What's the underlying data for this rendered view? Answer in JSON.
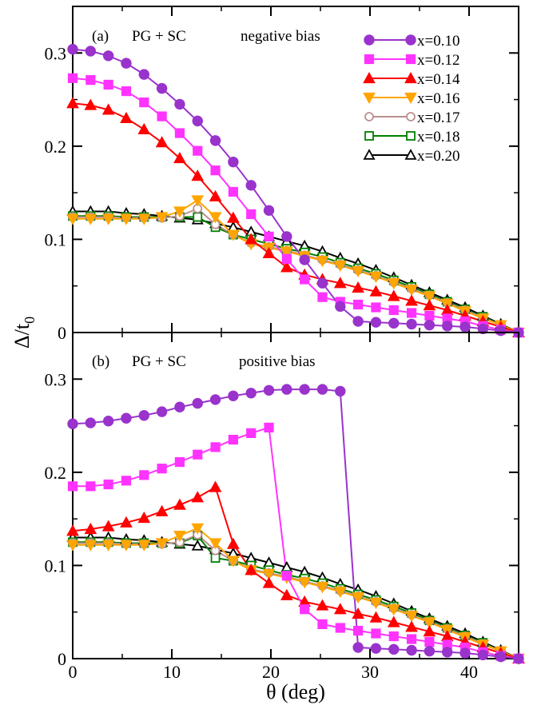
{
  "ylabel": "Δ/t",
  "ylabel_sub": "0",
  "xlabel": "θ (deg)",
  "x_ticks": [
    "0",
    "10",
    "20",
    "30",
    "40"
  ],
  "y_ticks": [
    "0",
    "0.1",
    "0.2",
    "0.3"
  ],
  "legend_labels": [
    "x=0.10",
    "x=0.12",
    "x=0.14",
    "x=0.16",
    "x=0.17",
    "x=0.18",
    "x=0.20"
  ],
  "panels": [
    {
      "tag": "(a)",
      "label": "PG + SC",
      "bias": "negative bias"
    },
    {
      "tag": "(b)",
      "label": "PG + SC",
      "bias": "positive bias"
    }
  ],
  "chart_data": [
    {
      "type": "line",
      "panel": "(a)",
      "title": "PG + SC negative bias",
      "xlabel": "",
      "ylabel": "Δ/t0",
      "xlim": [
        0,
        45
      ],
      "ylim": [
        0,
        0.35
      ],
      "x": [
        0,
        1.8,
        3.6,
        5.4,
        7.2,
        9.0,
        10.8,
        12.6,
        14.4,
        16.2,
        18.0,
        19.8,
        21.6,
        23.4,
        25.2,
        27.0,
        28.8,
        30.6,
        32.4,
        34.2,
        36.0,
        37.8,
        39.6,
        41.4,
        43.2,
        45.0
      ],
      "series": [
        {
          "name": "x=0.10",
          "color": "#9933cc",
          "marker": "circle-filled",
          "values": [
            0.304,
            0.302,
            0.297,
            0.289,
            0.277,
            0.262,
            0.245,
            0.227,
            0.206,
            0.183,
            0.158,
            0.131,
            0.103,
            0.078,
            0.053,
            0.028,
            0.012,
            0.011,
            0.01,
            0.009,
            0.008,
            0.007,
            0.006,
            0.004,
            0.002,
            0.0
          ]
        },
        {
          "name": "x=0.12",
          "color": "#ff33ff",
          "marker": "square-filled",
          "values": [
            0.273,
            0.271,
            0.266,
            0.259,
            0.247,
            0.232,
            0.214,
            0.195,
            0.174,
            0.151,
            0.127,
            0.103,
            0.079,
            0.057,
            0.038,
            0.033,
            0.03,
            0.027,
            0.024,
            0.021,
            0.018,
            0.015,
            0.012,
            0.007,
            0.003,
            0.0
          ]
        },
        {
          "name": "x=0.14",
          "color": "#ff0000",
          "marker": "triangle-up-filled",
          "values": [
            0.246,
            0.244,
            0.239,
            0.23,
            0.218,
            0.204,
            0.187,
            0.168,
            0.146,
            0.123,
            0.1,
            0.085,
            0.07,
            0.062,
            0.057,
            0.053,
            0.048,
            0.044,
            0.039,
            0.034,
            0.029,
            0.024,
            0.018,
            0.012,
            0.006,
            0.0
          ]
        },
        {
          "name": "x=0.16",
          "color": "#ffa500",
          "marker": "triangle-down-filled",
          "values": [
            0.122,
            0.122,
            0.122,
            0.122,
            0.122,
            0.124,
            0.13,
            0.142,
            0.124,
            0.105,
            0.095,
            0.091,
            0.087,
            0.082,
            0.077,
            0.072,
            0.066,
            0.06,
            0.053,
            0.046,
            0.039,
            0.031,
            0.023,
            0.015,
            0.008,
            0.0
          ]
        },
        {
          "name": "x=0.17",
          "color": "#bc8f8f",
          "marker": "circle-open",
          "values": [
            0.124,
            0.124,
            0.124,
            0.123,
            0.123,
            0.123,
            0.125,
            0.133,
            0.116,
            0.105,
            0.096,
            0.092,
            0.088,
            0.083,
            0.078,
            0.073,
            0.067,
            0.061,
            0.054,
            0.047,
            0.04,
            0.032,
            0.024,
            0.016,
            0.008,
            0.0
          ]
        },
        {
          "name": "x=0.18",
          "color": "#008000",
          "marker": "square-open",
          "values": [
            0.125,
            0.125,
            0.125,
            0.124,
            0.124,
            0.124,
            0.124,
            0.124,
            0.113,
            0.105,
            0.1,
            0.095,
            0.09,
            0.086,
            0.081,
            0.075,
            0.069,
            0.063,
            0.056,
            0.049,
            0.041,
            0.033,
            0.025,
            0.017,
            0.008,
            0.0
          ]
        },
        {
          "name": "x=0.20",
          "color": "#000000",
          "marker": "triangle-up-open",
          "values": [
            0.13,
            0.13,
            0.13,
            0.128,
            0.127,
            0.125,
            0.123,
            0.121,
            0.117,
            0.113,
            0.108,
            0.103,
            0.098,
            0.093,
            0.087,
            0.08,
            0.074,
            0.067,
            0.059,
            0.051,
            0.043,
            0.035,
            0.027,
            0.018,
            0.009,
            0.0
          ]
        }
      ]
    },
    {
      "type": "line",
      "panel": "(b)",
      "title": "PG + SC positive bias",
      "xlabel": "θ (deg)",
      "ylabel": "Δ/t0",
      "xlim": [
        0,
        45
      ],
      "ylim": [
        0,
        0.35
      ],
      "x": [
        0,
        1.8,
        3.6,
        5.4,
        7.2,
        9.0,
        10.8,
        12.6,
        14.4,
        16.2,
        18.0,
        19.8,
        21.6,
        23.4,
        25.2,
        27.0,
        28.8,
        30.6,
        32.4,
        34.2,
        36.0,
        37.8,
        39.6,
        41.4,
        43.2,
        45.0
      ],
      "series": [
        {
          "name": "x=0.10",
          "color": "#9933cc",
          "marker": "circle-filled",
          "values": [
            0.252,
            0.253,
            0.255,
            0.258,
            0.261,
            0.265,
            0.27,
            0.274,
            0.278,
            0.282,
            0.285,
            0.288,
            0.289,
            0.289,
            0.289,
            0.287,
            0.012,
            0.011,
            0.01,
            0.009,
            0.008,
            0.007,
            0.006,
            0.004,
            0.002,
            0.0
          ]
        },
        {
          "name": "x=0.12",
          "color": "#ff33ff",
          "marker": "square-filled",
          "values": [
            0.185,
            0.185,
            0.187,
            0.191,
            0.197,
            0.204,
            0.211,
            0.219,
            0.227,
            0.235,
            0.242,
            0.248,
            0.089,
            0.053,
            0.037,
            0.033,
            0.03,
            0.027,
            0.024,
            0.021,
            0.018,
            0.015,
            0.012,
            0.007,
            0.003,
            0.0
          ]
        },
        {
          "name": "x=0.14",
          "color": "#ff0000",
          "marker": "triangle-up-filled",
          "values": [
            0.137,
            0.139,
            0.142,
            0.146,
            0.151,
            0.158,
            0.165,
            0.173,
            0.184,
            0.123,
            0.095,
            0.081,
            0.068,
            0.061,
            0.057,
            0.053,
            0.048,
            0.044,
            0.039,
            0.034,
            0.029,
            0.024,
            0.018,
            0.012,
            0.006,
            0.0
          ]
        },
        {
          "name": "x=0.16",
          "color": "#ffa500",
          "marker": "triangle-down-filled",
          "values": [
            0.122,
            0.122,
            0.122,
            0.122,
            0.122,
            0.124,
            0.132,
            0.14,
            0.124,
            0.105,
            0.095,
            0.091,
            0.087,
            0.082,
            0.077,
            0.072,
            0.066,
            0.06,
            0.053,
            0.046,
            0.039,
            0.031,
            0.023,
            0.015,
            0.008,
            0.0
          ]
        },
        {
          "name": "x=0.17",
          "color": "#bc8f8f",
          "marker": "circle-open",
          "values": [
            0.124,
            0.124,
            0.124,
            0.123,
            0.123,
            0.123,
            0.125,
            0.133,
            0.116,
            0.105,
            0.096,
            0.092,
            0.088,
            0.083,
            0.078,
            0.073,
            0.067,
            0.061,
            0.054,
            0.047,
            0.04,
            0.032,
            0.024,
            0.016,
            0.008,
            0.0
          ]
        },
        {
          "name": "x=0.18",
          "color": "#008000",
          "marker": "square-open",
          "values": [
            0.125,
            0.125,
            0.125,
            0.124,
            0.124,
            0.124,
            0.124,
            0.132,
            0.108,
            0.105,
            0.1,
            0.095,
            0.09,
            0.086,
            0.081,
            0.075,
            0.069,
            0.063,
            0.056,
            0.049,
            0.041,
            0.033,
            0.025,
            0.017,
            0.008,
            0.0
          ]
        },
        {
          "name": "x=0.20",
          "color": "#000000",
          "marker": "triangle-up-open",
          "values": [
            0.13,
            0.13,
            0.13,
            0.128,
            0.127,
            0.125,
            0.123,
            0.121,
            0.117,
            0.113,
            0.108,
            0.103,
            0.098,
            0.093,
            0.087,
            0.08,
            0.074,
            0.067,
            0.059,
            0.051,
            0.043,
            0.035,
            0.027,
            0.018,
            0.009,
            0.0
          ]
        }
      ]
    }
  ]
}
